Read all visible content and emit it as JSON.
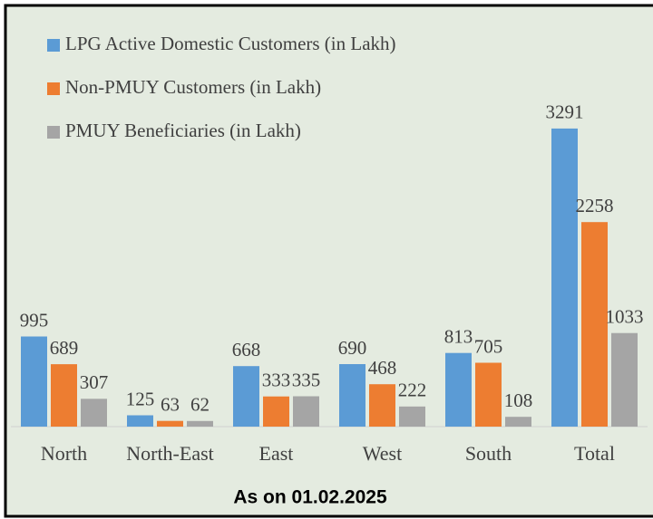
{
  "chart_data": {
    "type": "bar",
    "categories": [
      "North",
      "North-East",
      "East",
      "West",
      "South",
      "Total"
    ],
    "series": [
      {
        "name": "LPG Active Domestic Customers (in Lakh)",
        "color": "#5b9bd5",
        "values": [
          995,
          125,
          668,
          690,
          813,
          3291
        ]
      },
      {
        "name": "Non-PMUY Customers (in Lakh)",
        "color": "#ed7d31",
        "values": [
          689,
          63,
          333,
          468,
          705,
          2258
        ]
      },
      {
        "name": "PMUY Beneficiaries (in Lakh)",
        "color": "#a5a5a5",
        "values": [
          307,
          62,
          335,
          222,
          108,
          1033
        ]
      }
    ],
    "footnote": "As on 01.02.2025"
  }
}
